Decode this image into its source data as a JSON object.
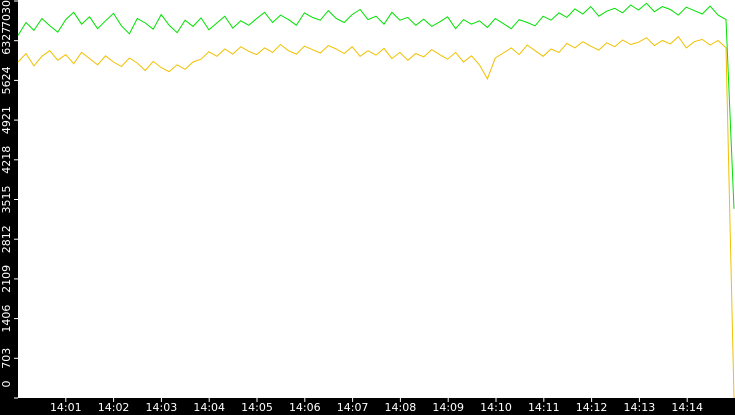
{
  "chart_data": {
    "type": "line",
    "xlim": [
      "14:00",
      "14:15"
    ],
    "xticks": [
      "14:01",
      "14:02",
      "14:03",
      "14:04",
      "14:05",
      "14:06",
      "14:07",
      "14:08",
      "14:09",
      "14:10",
      "14:11",
      "14:12",
      "14:13",
      "14:14"
    ],
    "ylim": [
      0,
      7030
    ],
    "yticks": [
      0,
      703,
      1406,
      2109,
      2812,
      3515,
      4218,
      4921,
      5624,
      6327,
      7030
    ],
    "series": [
      {
        "color": "#00e000",
        "values": [
          6420,
          6650,
          6510,
          6720,
          6590,
          6480,
          6700,
          6830,
          6620,
          6750,
          6540,
          6680,
          6810,
          6590,
          6450,
          6720,
          6640,
          6530,
          6790,
          6600,
          6470,
          6690,
          6580,
          6730,
          6520,
          6640,
          6760,
          6550,
          6680,
          6600,
          6720,
          6830,
          6650,
          6780,
          6700,
          6600,
          6820,
          6740,
          6690,
          6860,
          6720,
          6650,
          6790,
          6880,
          6700,
          6760,
          6620,
          6830,
          6690,
          6740,
          6600,
          6710,
          6580,
          6660,
          6750,
          6540,
          6700,
          6620,
          6680,
          6560,
          6720,
          6630,
          6540,
          6700,
          6650,
          6590,
          6760,
          6690,
          6820,
          6740,
          6890,
          6800,
          6930,
          6760,
          6850,
          6900,
          6820,
          6960,
          6870,
          6990,
          6840,
          6930,
          6880,
          6780,
          6920,
          6860,
          6800,
          6940,
          6780,
          6700,
          3350
        ]
      },
      {
        "color": "#f0c000",
        "values": [
          5950,
          6100,
          5880,
          6050,
          6150,
          5980,
          6080,
          5920,
          6120,
          6010,
          5900,
          6060,
          5950,
          5870,
          6020,
          5930,
          5800,
          5960,
          5850,
          5780,
          5900,
          5820,
          5950,
          6000,
          6130,
          6050,
          6180,
          6090,
          6220,
          6140,
          6080,
          6200,
          6120,
          6260,
          6150,
          6090,
          6230,
          6170,
          6110,
          6240,
          6180,
          6100,
          6220,
          6050,
          6150,
          6070,
          6190,
          6010,
          6120,
          5980,
          6100,
          6040,
          6170,
          6080,
          6000,
          6120,
          5950,
          6060,
          5900,
          5650,
          6020,
          6110,
          6200,
          6080,
          6250,
          6150,
          6050,
          6180,
          6120,
          6280,
          6200,
          6310,
          6230,
          6160,
          6290,
          6220,
          6340,
          6260,
          6300,
          6380,
          6240,
          6330,
          6270,
          6400,
          6200,
          6310,
          6350,
          6250,
          6330,
          6200,
          0
        ]
      }
    ]
  }
}
